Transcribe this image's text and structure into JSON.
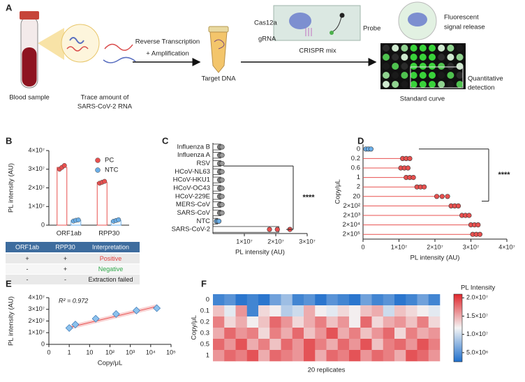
{
  "panel_a": {
    "panel": "A",
    "blood_sample": "Blood sample",
    "trace": [
      "Trace amount of",
      "SARS-CoV-2 RNA"
    ],
    "step1": [
      "Reverse Transcription",
      "+ Amplification"
    ],
    "target": "Target DNA",
    "cas": "Cas12a",
    "grna": "gRNA",
    "probe": "Probe",
    "crispr": "CRISPR mix",
    "signal": [
      "Fluorescent",
      "signal release"
    ],
    "quant": [
      "Quantitative",
      "detection"
    ],
    "curve": "Standard curve"
  },
  "table": {
    "header": [
      "ORF1ab",
      "RPP30",
      "Interpretation"
    ],
    "rows": [
      [
        "+",
        "+",
        "Positive"
      ],
      [
        "-",
        "+",
        "Negative"
      ],
      [
        "-",
        "-",
        "Extraction failed"
      ]
    ],
    "interpretation_colors": [
      "#e0403f",
      "#2fa84a",
      "#222222"
    ]
  },
  "chart_data": [
    {
      "panel": "B",
      "type": "bar",
      "ylabel": "PL intensity (AU)",
      "categories": [
        "ORF1ab",
        "RPP30"
      ],
      "series": [
        {
          "name": "PC",
          "color": "#e8504f",
          "values": [
            31000000.0,
            23000000.0
          ],
          "points": [
            [
              30000000.0,
              31000000.0,
              32000000.0
            ],
            [
              22500000.0,
              23000000.0,
              23500000.0
            ]
          ]
        },
        {
          "name": "NTC",
          "color": "#6aaee8",
          "values": [
            2500000.0,
            2500000.0
          ],
          "points": [
            [
              2200000.0,
              2600000.0,
              2800000.0
            ],
            [
              2100000.0,
              2500000.0,
              2900000.0
            ]
          ]
        }
      ],
      "ylim": [
        0,
        40000000.0
      ],
      "yticks": [
        0,
        {
          "value": 10000000.0,
          "label": "1×10⁷"
        },
        {
          "value": 20000000.0,
          "label": "2×10⁷"
        },
        {
          "value": 30000000.0,
          "label": "3×10⁷"
        },
        {
          "value": 40000000.0,
          "label": "4×10⁷"
        }
      ],
      "legend": "upper right"
    },
    {
      "panel": "C",
      "type": "hbar",
      "bar_style": "box",
      "xlabel": "PL intensity (AU)",
      "categories": [
        "Influenza B",
        "Influenza A",
        "RSV",
        "HCoV-NL63",
        "HCoV-HKU1",
        "HCoV-OC43",
        "HCoV-229E",
        "MERS-CoV",
        "SARS-CoV",
        "NTC",
        "SARS-CoV-2"
      ],
      "values": [
        2500000.0,
        2500000.0,
        2500000.0,
        2500000.0,
        2500000.0,
        2500000.0,
        2500000.0,
        2500000.0,
        2500000.0,
        1500000.0,
        21000000.0
      ],
      "points": [
        [
          2100000.0,
          2500000.0,
          2900000.0
        ],
        [
          2100000.0,
          2500000.0,
          2900000.0
        ],
        [
          2100000.0,
          2500000.0,
          2900000.0
        ],
        [
          2100000.0,
          2500000.0,
          2900000.0
        ],
        [
          2100000.0,
          2500000.0,
          2900000.0
        ],
        [
          2100000.0,
          2500000.0,
          2900000.0
        ],
        [
          2100000.0,
          2500000.0,
          2900000.0
        ],
        [
          2100000.0,
          2500000.0,
          2900000.0
        ],
        [
          2100000.0,
          2500000.0,
          2900000.0
        ],
        [
          1100000.0,
          1500000.0,
          1900000.0
        ],
        [
          18000000.0,
          20500000.0,
          24500000.0
        ]
      ],
      "colors": [
        "#9a9a9a",
        "#9a9a9a",
        "#9a9a9a",
        "#9a9a9a",
        "#9a9a9a",
        "#9a9a9a",
        "#9a9a9a",
        "#9a9a9a",
        "#9a9a9a",
        "#6aaee8",
        "#e8504f"
      ],
      "xlim": [
        0,
        30000000.0
      ],
      "xticks": [
        {
          "value": 10000000.0,
          "label": "1×10⁷"
        },
        {
          "value": 20000000.0,
          "label": "2×10⁷"
        },
        {
          "value": 30000000.0,
          "label": "3×10⁷"
        }
      ],
      "significance": "****"
    },
    {
      "panel": "D",
      "type": "hbar",
      "bar_style": "stem",
      "xlabel": "PL intensity (AU)",
      "ylabel": "Copy/μL",
      "categories": [
        "0",
        "0.2",
        "0.6",
        "1",
        "2",
        "20",
        "2×10²",
        "2×10³",
        "2×10⁴",
        "2×10⁵"
      ],
      "values": [
        1500000.0,
        12000000.0,
        11500000.0,
        13000000.0,
        16000000.0,
        22000000.0,
        25500000.0,
        28500000.0,
        31000000.0,
        31500000.0
      ],
      "points": [
        [
          800000.0,
          1500000.0,
          2200000.0
        ],
        [
          11000000.0,
          12000000.0,
          13000000.0
        ],
        [
          10500000.0,
          11500000.0,
          12500000.0
        ],
        [
          12000000.0,
          13000000.0,
          14000000.0
        ],
        [
          15000000.0,
          16000000.0,
          17000000.0
        ],
        [
          20500000.0,
          22000000.0,
          23500000.0
        ],
        [
          24500000.0,
          25500000.0,
          26500000.0
        ],
        [
          27500000.0,
          28500000.0,
          29500000.0
        ],
        [
          30000000.0,
          31000000.0,
          32000000.0
        ],
        [
          30500000.0,
          31500000.0,
          32500000.0
        ]
      ],
      "colors": [
        "#6aaee8",
        "#e8504f",
        "#e8504f",
        "#e8504f",
        "#e8504f",
        "#e8504f",
        "#e8504f",
        "#e8504f",
        "#e8504f",
        "#e8504f"
      ],
      "xlim": [
        0,
        40000000.0
      ],
      "xticks": [
        0,
        {
          "value": 10000000.0,
          "label": "1×10⁷"
        },
        {
          "value": 20000000.0,
          "label": "2×10⁷"
        },
        {
          "value": 30000000.0,
          "label": "3×10⁷"
        },
        {
          "value": 40000000.0,
          "label": "4×10⁷"
        }
      ],
      "significance": "****"
    },
    {
      "panel": "E",
      "type": "scatter",
      "xlabel": "Copy/μL",
      "ylabel": "PL intensity (AU)",
      "annotation": "R² = 0.972",
      "x": [
        1,
        2,
        20,
        200,
        2000,
        20000
      ],
      "values": [
        14000000.0,
        17000000.0,
        22000000.0,
        26000000.0,
        29000000.0,
        31000000.0
      ],
      "color": "#8cc2ee",
      "fit": {
        "color": "#e8504f",
        "x": [
          1,
          20000
        ],
        "y": [
          14500000.0,
          32500000.0
        ]
      },
      "xscale": "log",
      "xlim": [
        0.1,
        100000.0
      ],
      "xticks": [
        {
          "value": 0.1,
          "label": "0"
        },
        1,
        10,
        {
          "value": 100,
          "label": "10²"
        },
        {
          "value": 1000,
          "label": "10³"
        },
        {
          "value": 10000,
          "label": "10⁴"
        },
        {
          "value": 100000,
          "label": "10⁵"
        }
      ],
      "ylim": [
        0,
        40000000.0
      ],
      "yticks": [
        0,
        {
          "value": 10000000.0,
          "label": "1×10⁷"
        },
        {
          "value": 20000000.0,
          "label": "2×10⁷"
        },
        {
          "value": 30000000.0,
          "label": "3×10⁷"
        },
        {
          "value": 40000000.0,
          "label": "4×10⁷"
        }
      ]
    },
    {
      "panel": "F",
      "type": "heatmap",
      "xlabel": "20 replicates",
      "ylabel": "Copy/μL",
      "colorbar_title": "PL Intensity",
      "categories": [
        "0",
        "0.1",
        "0.2",
        "0.3",
        "0.5",
        "1"
      ],
      "values": [
        [
          4000000.0,
          5000000.0,
          3000000.0,
          4000000.0,
          3000000.0,
          6000000.0,
          8000000.0,
          4000000.0,
          5000000.0,
          3000000.0,
          5000000.0,
          4000000.0,
          3000000.0,
          6000000.0,
          4000000.0,
          5000000.0,
          3000000.0,
          4000000.0,
          6000000.0,
          4000000.0
        ],
        [
          14000000.0,
          11000000.0,
          16000000.0,
          4000000.0,
          13000000.0,
          12000000.0,
          9000000.0,
          10000000.0,
          15000000.0,
          12000000.0,
          11000000.0,
          13000000.0,
          12000000.0,
          14000000.0,
          15000000.0,
          10000000.0,
          14000000.0,
          13000000.0,
          12000000.0,
          11000000.0
        ],
        [
          17000000.0,
          13000000.0,
          15000000.0,
          12000000.0,
          14000000.0,
          18000000.0,
          16000000.0,
          13000000.0,
          15000000.0,
          17000000.0,
          14000000.0,
          16000000.0,
          12000000.0,
          18000000.0,
          13000000.0,
          15000000.0,
          16000000.0,
          14000000.0,
          17000000.0,
          13000000.0
        ],
        [
          15000000.0,
          18000000.0,
          16000000.0,
          17000000.0,
          13000000.0,
          17000000.0,
          15000000.0,
          18000000.0,
          14000000.0,
          16000000.0,
          19000000.0,
          15000000.0,
          17000000.0,
          14000000.0,
          16000000.0,
          18000000.0,
          13000000.0,
          17000000.0,
          15000000.0,
          16000000.0
        ],
        [
          18000000.0,
          16000000.0,
          19000000.0,
          15000000.0,
          17000000.0,
          14000000.0,
          18000000.0,
          16000000.0,
          19000000.0,
          17000000.0,
          15000000.0,
          18000000.0,
          16000000.0,
          19000000.0,
          14000000.0,
          17000000.0,
          18000000.0,
          16000000.0,
          19000000.0,
          17000000.0
        ],
        [
          16000000.0,
          18000000.0,
          17000000.0,
          19000000.0,
          15000000.0,
          18000000.0,
          17000000.0,
          16000000.0,
          19000000.0,
          15000000.0,
          18000000.0,
          17000000.0,
          19000000.0,
          16000000.0,
          18000000.0,
          17000000.0,
          15000000.0,
          19000000.0,
          18000000.0,
          16000000.0
        ]
      ],
      "colormap": [
        "#1f6fcc",
        "#f4f4f4",
        "#e0262c"
      ],
      "zlim": [
        2500000.0,
        21000000.0
      ],
      "zticks": [
        {
          "value": 5000000.0,
          "label": "5.0×10⁶"
        },
        {
          "value": 10000000.0,
          "label": "1.0×10⁷"
        },
        {
          "value": 15000000.0,
          "label": "1.5×10⁷"
        },
        {
          "value": 20000000.0,
          "label": "2.0×10⁷"
        }
      ]
    }
  ]
}
